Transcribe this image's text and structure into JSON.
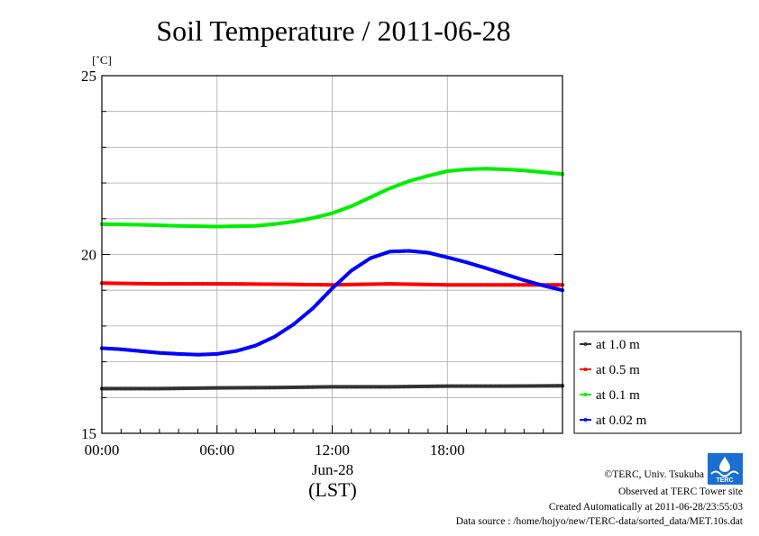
{
  "chart_data": {
    "type": "line",
    "title": "Soil Temperature / 2011-06-28",
    "ylabel": "[˚C]",
    "xlabel": "(LST)",
    "date_label": "Jun-28",
    "xlim": [
      0,
      24
    ],
    "ylim": [
      15,
      25
    ],
    "x_ticks": [
      {
        "value": 0,
        "label": "00:00"
      },
      {
        "value": 6,
        "label": "06:00"
      },
      {
        "value": 12,
        "label": "12:00"
      },
      {
        "value": 18,
        "label": "18:00"
      }
    ],
    "y_ticks": [
      {
        "value": 15,
        "label": "15"
      },
      {
        "value": 20,
        "label": "20"
      },
      {
        "value": 25,
        "label": "25"
      }
    ],
    "grid": true,
    "legend_position": "right",
    "series": [
      {
        "name": "at 1.0 m",
        "color": "#333333",
        "x": [
          0,
          3,
          6,
          9,
          12,
          15,
          18,
          21,
          24
        ],
        "y": [
          16.25,
          16.25,
          16.27,
          16.28,
          16.3,
          16.3,
          16.32,
          16.32,
          16.33
        ]
      },
      {
        "name": "at 0.5 m",
        "color": "#ff0000",
        "x": [
          0,
          3,
          6,
          9,
          12,
          15,
          18,
          21,
          24
        ],
        "y": [
          19.2,
          19.18,
          19.18,
          19.17,
          19.15,
          19.18,
          19.15,
          19.15,
          19.15
        ]
      },
      {
        "name": "at 0.1 m",
        "color": "#00ee00",
        "x": [
          0,
          2,
          4,
          6,
          8,
          9,
          10,
          11,
          12,
          13,
          14,
          15,
          16,
          17,
          18,
          19,
          20,
          21,
          22,
          23,
          24
        ],
        "y": [
          20.85,
          20.83,
          20.8,
          20.78,
          20.8,
          20.85,
          20.92,
          21.02,
          21.15,
          21.35,
          21.6,
          21.85,
          22.05,
          22.2,
          22.33,
          22.38,
          22.4,
          22.38,
          22.35,
          22.3,
          22.25
        ]
      },
      {
        "name": "at 0.02 m",
        "color": "#0000ff",
        "x": [
          0,
          1,
          2,
          3,
          4,
          5,
          6,
          7,
          8,
          9,
          10,
          11,
          12,
          13,
          14,
          15,
          16,
          17,
          18,
          19,
          20,
          21,
          22,
          23,
          24
        ],
        "y": [
          17.38,
          17.35,
          17.3,
          17.25,
          17.22,
          17.2,
          17.22,
          17.3,
          17.45,
          17.7,
          18.05,
          18.5,
          19.05,
          19.55,
          19.9,
          20.08,
          20.1,
          20.05,
          19.92,
          19.78,
          19.62,
          19.45,
          19.28,
          19.13,
          19.0
        ]
      }
    ]
  },
  "credits": {
    "copyright": "©TERC, Univ. Tsukuba",
    "observed": "Observed at TERC Tower site",
    "created": "Created Automatically at 2011-06-28/23:55:03",
    "source": "Data source : /home/hojyo/new/TERC-data/sorted_data/MET.10s.dat",
    "logo_text": "TERC"
  }
}
